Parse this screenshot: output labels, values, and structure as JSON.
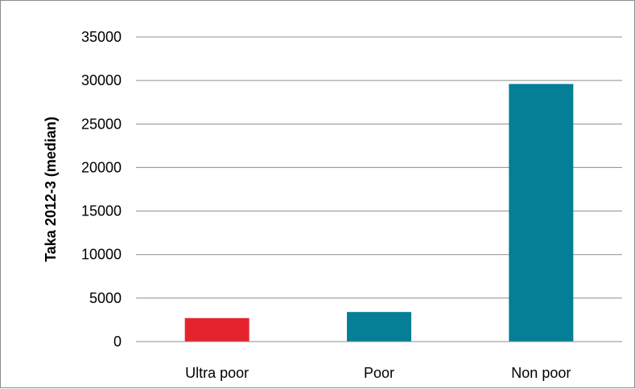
{
  "chart_data": {
    "type": "bar",
    "categories": [
      "Ultra poor",
      "Poor",
      "Non poor"
    ],
    "values": [
      2700,
      3400,
      29600
    ],
    "bar_colors": [
      "#e5232f",
      "#057f95",
      "#057f95"
    ],
    "title": "",
    "xlabel": "",
    "ylabel": "Taka 2012-3 (median)",
    "ylim": [
      0,
      35000
    ],
    "yticks": [
      "0",
      "5000",
      "10000",
      "15000",
      "20000",
      "25000",
      "30000",
      "35000"
    ],
    "grid": true,
    "legend": "none"
  }
}
